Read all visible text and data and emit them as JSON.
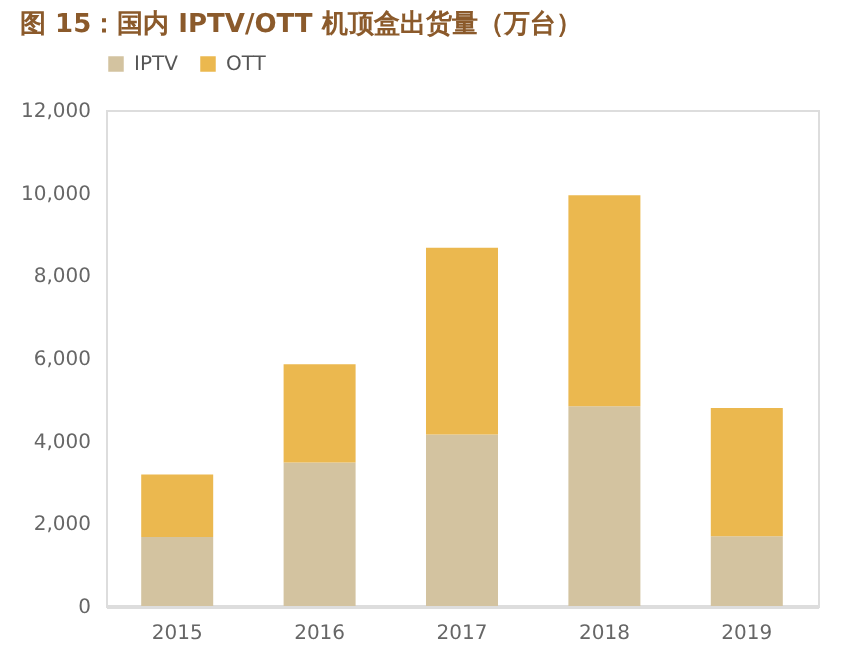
{
  "chart_data": {
    "type": "bar",
    "stacked": true,
    "title": "图 15：国内 IPTV/OTT 机顶盒出货量（万台）",
    "categories": [
      "2015",
      "2016",
      "2017",
      "2018",
      "2019"
    ],
    "series": [
      {
        "name": "IPTV",
        "color": "#d3c3a0",
        "values": [
          1670,
          3470,
          4150,
          4830,
          1690
        ]
      },
      {
        "name": "OTT",
        "color": "#ebb84f",
        "values": [
          1510,
          2380,
          4520,
          5110,
          3100
        ]
      }
    ],
    "ylim": [
      0,
      12000
    ],
    "yticks": [
      {
        "value": 0,
        "label": "0"
      },
      {
        "value": 2000,
        "label": "2,000"
      },
      {
        "value": 4000,
        "label": "4,000"
      },
      {
        "value": 6000,
        "label": "6,000"
      },
      {
        "value": 8000,
        "label": "8,000"
      },
      {
        "value": 10000,
        "label": "10,000"
      },
      {
        "value": 12000,
        "label": "12,000"
      }
    ],
    "grid": false,
    "legend": "top"
  }
}
